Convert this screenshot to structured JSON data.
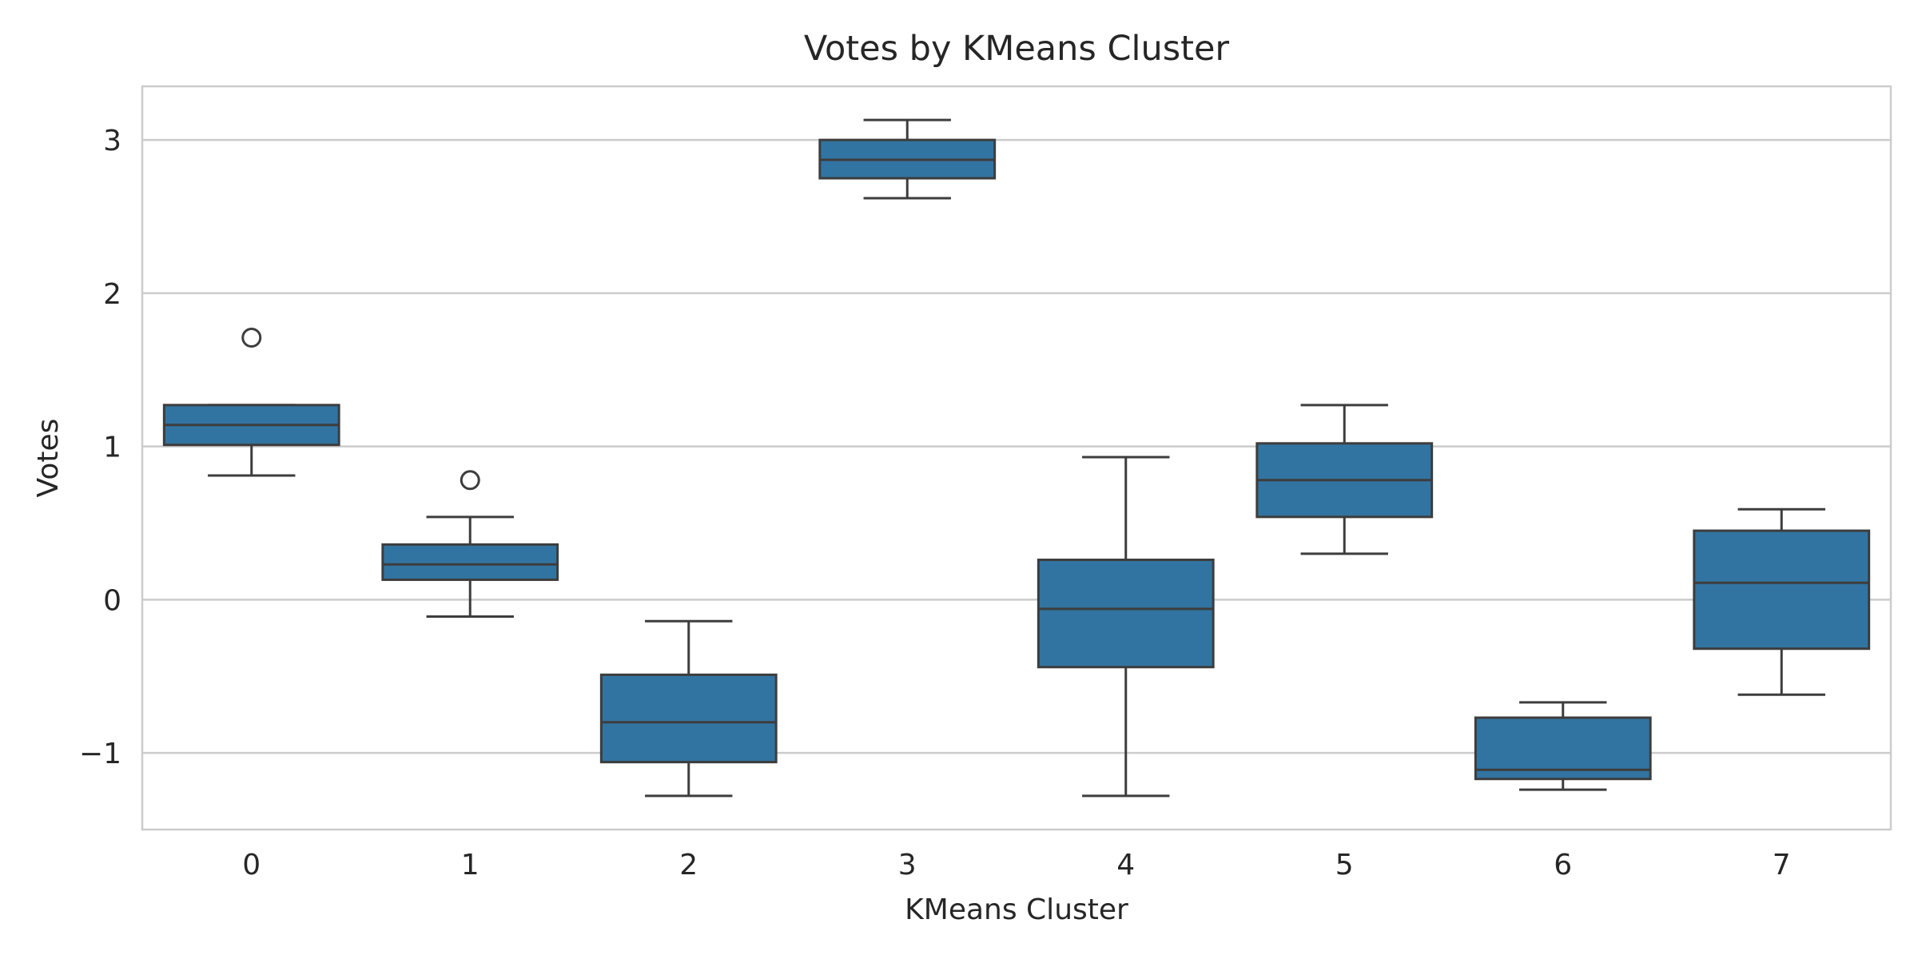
{
  "chart_data": {
    "type": "box",
    "title": "Votes by KMeans Cluster",
    "xlabel": "KMeans Cluster",
    "ylabel": "Votes",
    "categories": [
      "0",
      "1",
      "2",
      "3",
      "4",
      "5",
      "6",
      "7"
    ],
    "ylim": [
      -1.5,
      3.35
    ],
    "yticks": [
      -1,
      0,
      1,
      2,
      3
    ],
    "ytick_labels": [
      "−1",
      "0",
      "1",
      "2",
      "3"
    ],
    "grid": "horizontal",
    "boxes": [
      {
        "category": "0",
        "whisker_low": 0.81,
        "q1": 1.01,
        "median": 1.14,
        "q3": 1.27,
        "whisker_high": 1.27,
        "outliers": [
          1.71
        ]
      },
      {
        "category": "1",
        "whisker_low": -0.11,
        "q1": 0.13,
        "median": 0.23,
        "q3": 0.36,
        "whisker_high": 0.54,
        "outliers": [
          0.78
        ]
      },
      {
        "category": "2",
        "whisker_low": -1.28,
        "q1": -1.06,
        "median": -0.8,
        "q3": -0.49,
        "whisker_high": -0.14,
        "outliers": []
      },
      {
        "category": "3",
        "whisker_low": 2.62,
        "q1": 2.75,
        "median": 2.87,
        "q3": 3.0,
        "whisker_high": 3.13,
        "outliers": []
      },
      {
        "category": "4",
        "whisker_low": -1.28,
        "q1": -0.44,
        "median": -0.06,
        "q3": 0.26,
        "whisker_high": 0.93,
        "outliers": []
      },
      {
        "category": "5",
        "whisker_low": 0.3,
        "q1": 0.54,
        "median": 0.78,
        "q3": 1.02,
        "whisker_high": 1.27,
        "outliers": []
      },
      {
        "category": "6",
        "whisker_low": -1.24,
        "q1": -1.17,
        "median": -1.11,
        "q3": -0.77,
        "whisker_high": -0.67,
        "outliers": []
      },
      {
        "category": "7",
        "whisker_low": -0.62,
        "q1": -0.32,
        "median": 0.11,
        "q3": 0.45,
        "whisker_high": 0.59,
        "outliers": []
      }
    ],
    "colors": {
      "box_fill": "#3274a1",
      "line": "#3d3d3d",
      "grid": "#cccccc",
      "frame": "#cccccc",
      "text": "#262626"
    }
  }
}
